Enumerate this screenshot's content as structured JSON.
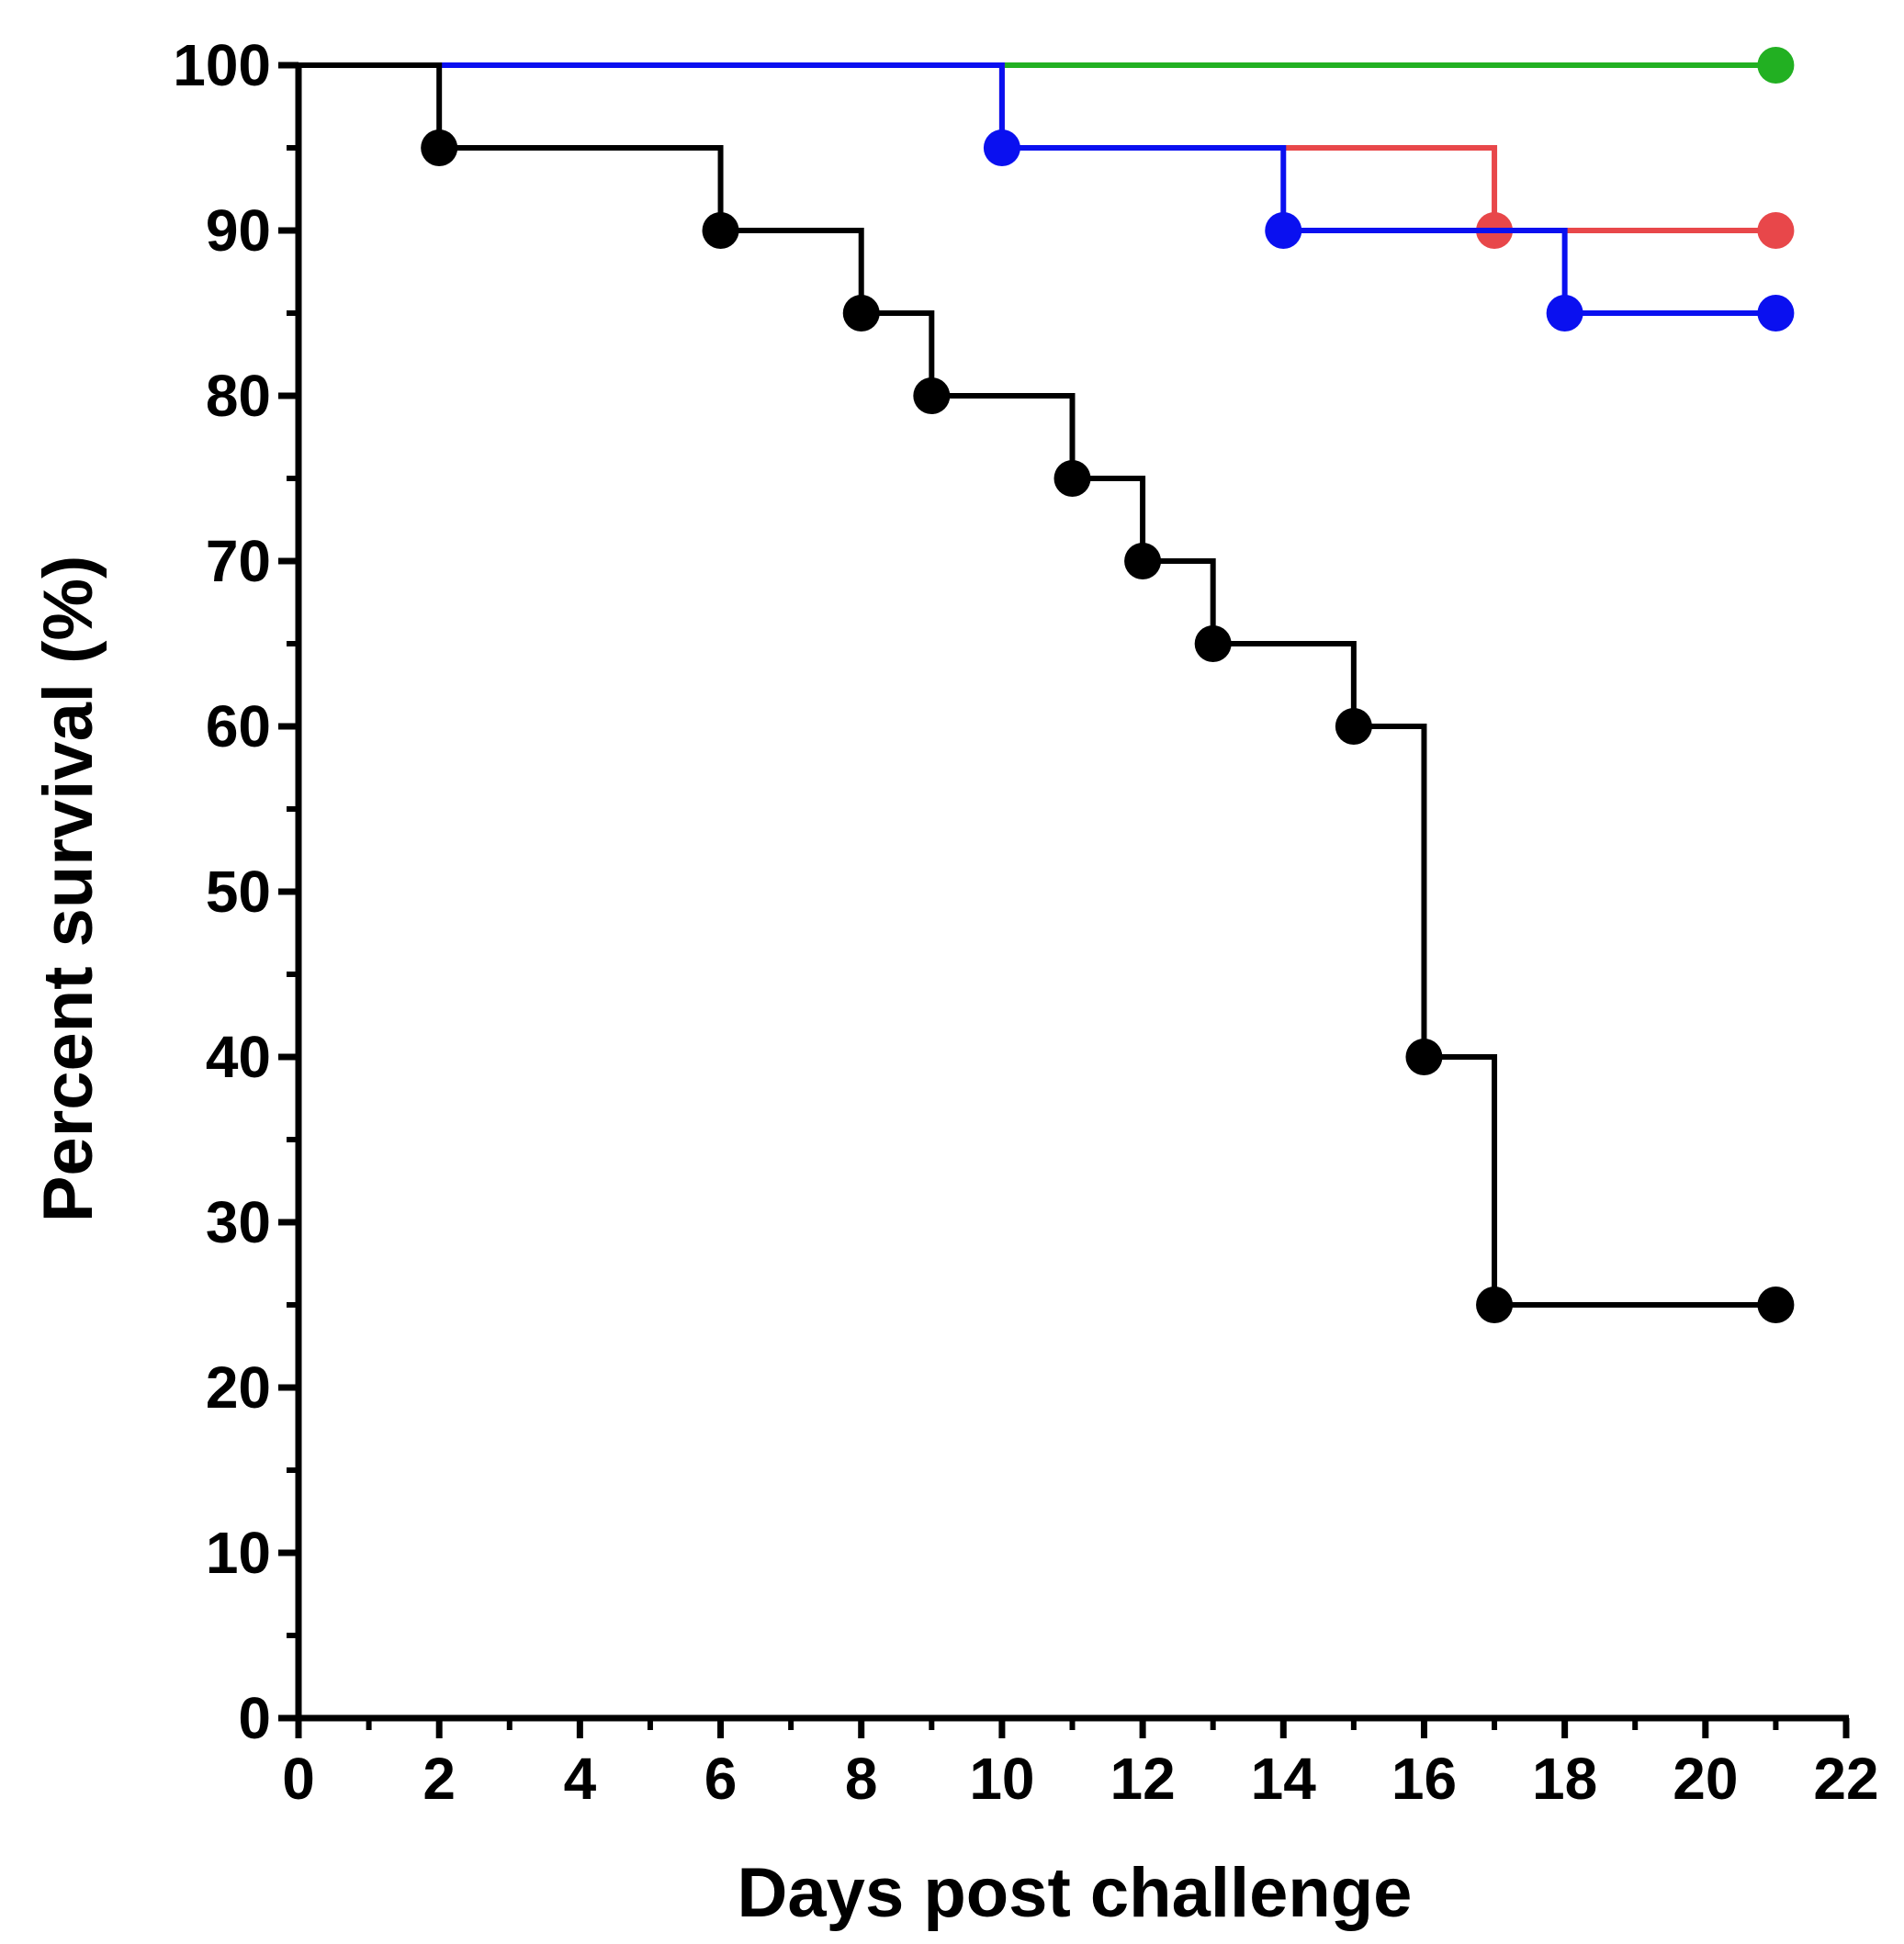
{
  "chart_data": {
    "type": "line",
    "subtype": "kaplan-meier survival (step)",
    "title": "",
    "xlabel": "Days post challenge",
    "ylabel": "Percent survival (%)",
    "xlim": [
      0,
      22
    ],
    "ylim": [
      0,
      100
    ],
    "x_ticks": [
      0,
      2,
      4,
      6,
      8,
      10,
      12,
      14,
      16,
      18,
      20,
      22
    ],
    "y_ticks": [
      0,
      10,
      20,
      30,
      40,
      50,
      60,
      70,
      80,
      90,
      100
    ],
    "x_tick_labels": [
      "0",
      "2",
      "4",
      "6",
      "8",
      "10",
      "12",
      "14",
      "16",
      "18",
      "20",
      "22"
    ],
    "y_tick_labels": [
      "0",
      "10",
      "20",
      "30",
      "40",
      "50",
      "60",
      "70",
      "80",
      "90",
      "100"
    ],
    "grid": false,
    "legend": "none",
    "series": [
      {
        "name": "green group",
        "color": "#22b022",
        "step_x": [
          0,
          21
        ],
        "step_y": [
          100,
          100
        ],
        "markers": [
          {
            "x": 21,
            "y": 100
          }
        ]
      },
      {
        "name": "red group",
        "color": "#e8474a",
        "step_x": [
          0,
          10,
          17,
          21
        ],
        "step_y": [
          100,
          95,
          90,
          90
        ],
        "markers": [
          {
            "x": 17,
            "y": 90
          },
          {
            "x": 21,
            "y": 90
          }
        ]
      },
      {
        "name": "blue group",
        "color": "#0a10f0",
        "step_x": [
          0,
          10,
          14,
          18,
          21
        ],
        "step_y": [
          100,
          95,
          90,
          85,
          85
        ],
        "markers": [
          {
            "x": 10,
            "y": 95
          },
          {
            "x": 14,
            "y": 90
          },
          {
            "x": 18,
            "y": 85
          },
          {
            "x": 21,
            "y": 85
          }
        ]
      },
      {
        "name": "black group",
        "color": "#000000",
        "step_x": [
          0,
          2,
          6,
          8,
          9,
          11,
          12,
          13,
          15,
          16,
          17,
          21
        ],
        "step_y": [
          100,
          95,
          90,
          85,
          80,
          75,
          70,
          65,
          60,
          40,
          25,
          25
        ],
        "markers": [
          {
            "x": 2,
            "y": 95
          },
          {
            "x": 6,
            "y": 90
          },
          {
            "x": 8,
            "y": 85
          },
          {
            "x": 9,
            "y": 80
          },
          {
            "x": 11,
            "y": 75
          },
          {
            "x": 12,
            "y": 70
          },
          {
            "x": 13,
            "y": 65
          },
          {
            "x": 15,
            "y": 60
          },
          {
            "x": 16,
            "y": 40
          },
          {
            "x": 17,
            "y": 25
          },
          {
            "x": 21,
            "y": 25
          }
        ]
      }
    ]
  }
}
